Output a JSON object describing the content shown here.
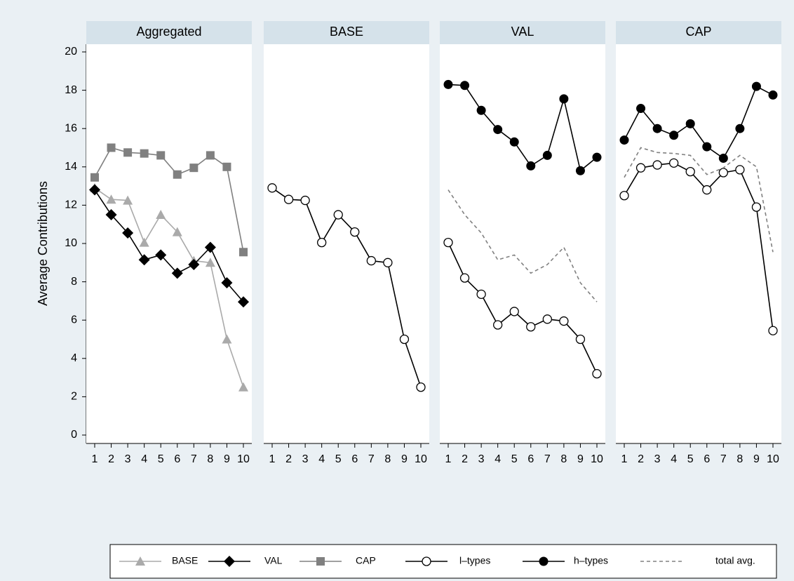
{
  "chart_data": [
    {
      "type": "line",
      "title": "Aggregated",
      "y_label": "Average Contributions",
      "x": [
        1,
        2,
        3,
        4,
        5,
        6,
        7,
        8,
        9,
        10
      ],
      "xlim": [
        1,
        10
      ],
      "xticks": [
        1,
        2,
        3,
        4,
        5,
        6,
        7,
        8,
        9,
        10
      ],
      "ylim": [
        0,
        20
      ],
      "yticks": [
        0,
        2,
        4,
        6,
        8,
        10,
        12,
        14,
        16,
        18,
        20
      ],
      "series": [
        {
          "name": "BASE",
          "color": "#aaaaaa",
          "marker": "triangle",
          "values": [
            12.9,
            12.3,
            12.25,
            10.05,
            11.5,
            10.6,
            9.1,
            9.0,
            5.0,
            2.5
          ]
        },
        {
          "name": "VAL",
          "color": "#000000",
          "marker": "diamond",
          "values": [
            12.8,
            11.5,
            10.55,
            9.15,
            9.4,
            8.45,
            8.9,
            9.8,
            7.95,
            6.95
          ]
        },
        {
          "name": "CAP",
          "color": "#808080",
          "marker": "square",
          "values": [
            13.45,
            15.0,
            14.75,
            14.7,
            14.6,
            13.6,
            13.95,
            14.6,
            14.0,
            9.55
          ]
        }
      ]
    },
    {
      "type": "line",
      "title": "BASE",
      "x": [
        1,
        2,
        3,
        4,
        5,
        6,
        7,
        8,
        9,
        10
      ],
      "xlim": [
        1,
        10
      ],
      "xticks": [
        1,
        2,
        3,
        4,
        5,
        6,
        7,
        8,
        9,
        10
      ],
      "ylim": [
        0,
        20
      ],
      "series": [
        {
          "name": "l–types",
          "color": "#000000",
          "marker": "circle-open",
          "values": [
            12.9,
            12.3,
            12.25,
            10.05,
            11.5,
            10.6,
            9.1,
            9.0,
            5.0,
            2.5
          ]
        }
      ]
    },
    {
      "type": "line",
      "title": "VAL",
      "x": [
        1,
        2,
        3,
        4,
        5,
        6,
        7,
        8,
        9,
        10
      ],
      "xlim": [
        1,
        10
      ],
      "xticks": [
        1,
        2,
        3,
        4,
        5,
        6,
        7,
        8,
        9,
        10
      ],
      "ylim": [
        0,
        20
      ],
      "series": [
        {
          "name": "h–types",
          "color": "#000000",
          "marker": "circle",
          "values": [
            18.3,
            18.25,
            16.95,
            15.95,
            15.3,
            14.05,
            14.6,
            17.55,
            13.8,
            14.5
          ]
        },
        {
          "name": "l–types",
          "color": "#000000",
          "marker": "circle-open",
          "values": [
            10.05,
            8.2,
            7.35,
            5.75,
            6.45,
            5.65,
            6.05,
            5.95,
            5.0,
            3.2
          ]
        },
        {
          "name": "total avg.",
          "color": "#808080",
          "dashed": true,
          "values": [
            12.8,
            11.5,
            10.55,
            9.15,
            9.4,
            8.45,
            8.9,
            9.8,
            7.95,
            6.95
          ]
        }
      ]
    },
    {
      "type": "line",
      "title": "CAP",
      "x": [
        1,
        2,
        3,
        4,
        5,
        6,
        7,
        8,
        9,
        10
      ],
      "xlim": [
        1,
        10
      ],
      "xticks": [
        1,
        2,
        3,
        4,
        5,
        6,
        7,
        8,
        9,
        10
      ],
      "ylim": [
        0,
        20
      ],
      "series": [
        {
          "name": "h–types",
          "color": "#000000",
          "marker": "circle",
          "values": [
            15.4,
            17.05,
            16.0,
            15.65,
            16.25,
            15.05,
            14.45,
            16.0,
            18.2,
            17.75
          ]
        },
        {
          "name": "l–types",
          "color": "#000000",
          "marker": "circle-open",
          "values": [
            12.5,
            13.95,
            14.1,
            14.2,
            13.75,
            12.8,
            13.7,
            13.85,
            11.9,
            5.45
          ]
        },
        {
          "name": "total avg.",
          "color": "#808080",
          "dashed": true,
          "values": [
            13.45,
            15.0,
            14.75,
            14.7,
            14.6,
            13.6,
            13.95,
            14.6,
            14.0,
            9.55
          ]
        }
      ]
    }
  ]
}
